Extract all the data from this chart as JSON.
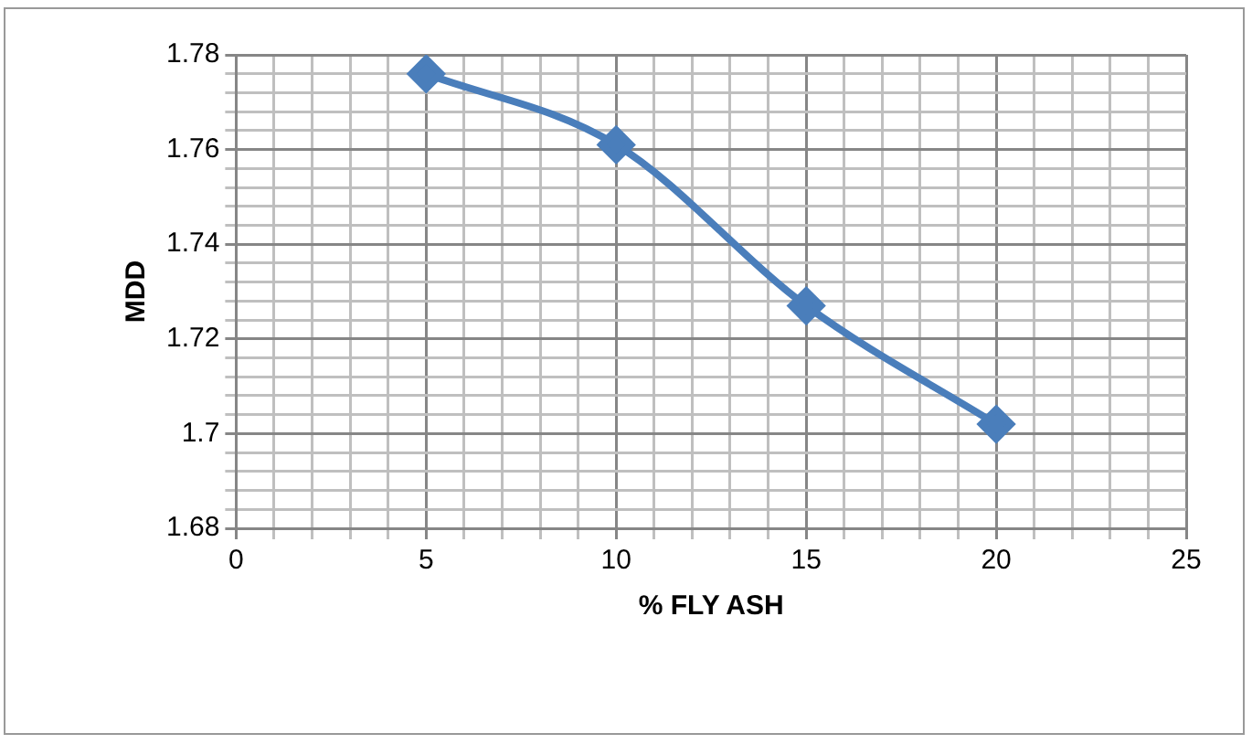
{
  "chart_data": {
    "type": "line",
    "xlabel": "% FLY ASH",
    "ylabel": "MDD",
    "x": [
      5,
      10,
      15,
      20
    ],
    "series": [
      {
        "color": "#4a7ebb",
        "values": [
          1.776,
          1.761,
          1.727,
          1.702
        ]
      }
    ],
    "xlim": [
      0,
      25
    ],
    "xticks": [
      0,
      {
        "value": 1,
        "label": null
      },
      {
        "value": 2,
        "label": null
      },
      {
        "value": 3,
        "label": null
      },
      {
        "value": 4,
        "label": null
      },
      5,
      {
        "value": 6,
        "label": null
      },
      {
        "value": 7,
        "label": null
      },
      {
        "value": 8,
        "label": null
      },
      {
        "value": 9,
        "label": null
      },
      10,
      {
        "value": 11,
        "label": null
      },
      {
        "value": 12,
        "label": null
      },
      {
        "value": 13,
        "label": null
      },
      {
        "value": 14,
        "label": null
      },
      15,
      {
        "value": 16,
        "label": null
      },
      {
        "value": 17,
        "label": null
      },
      {
        "value": 18,
        "label": null
      },
      {
        "value": 19,
        "label": null
      },
      20,
      {
        "value": 21,
        "label": null
      },
      {
        "value": 22,
        "label": null
      },
      {
        "value": 23,
        "label": null
      },
      {
        "value": 24,
        "label": null
      },
      25
    ],
    "ylim": [
      1.68,
      1.78
    ],
    "yticks": [
      1.68,
      {
        "value": 1.684,
        "label": null
      },
      {
        "value": 1.688,
        "label": null
      },
      {
        "value": 1.692,
        "label": null
      },
      {
        "value": 1.696,
        "label": null
      },
      {
        "value": 1.7,
        "label": "1.7"
      },
      {
        "value": 1.704,
        "label": null
      },
      {
        "value": 1.708,
        "label": null
      },
      {
        "value": 1.712,
        "label": null
      },
      {
        "value": 1.716,
        "label": null
      },
      1.72,
      {
        "value": 1.724,
        "label": null
      },
      {
        "value": 1.728,
        "label": null
      },
      {
        "value": 1.732,
        "label": null
      },
      {
        "value": 1.736,
        "label": null
      },
      1.74,
      {
        "value": 1.744,
        "label": null
      },
      {
        "value": 1.748,
        "label": null
      },
      {
        "value": 1.752,
        "label": null
      },
      {
        "value": 1.756,
        "label": null
      },
      1.76,
      {
        "value": 1.764,
        "label": null
      },
      {
        "value": 1.768,
        "label": null
      },
      {
        "value": 1.772,
        "label": null
      },
      {
        "value": 1.776,
        "label": null
      },
      1.78
    ],
    "grid": true,
    "legend": false,
    "marker": "diamond",
    "line_style": "solid"
  }
}
